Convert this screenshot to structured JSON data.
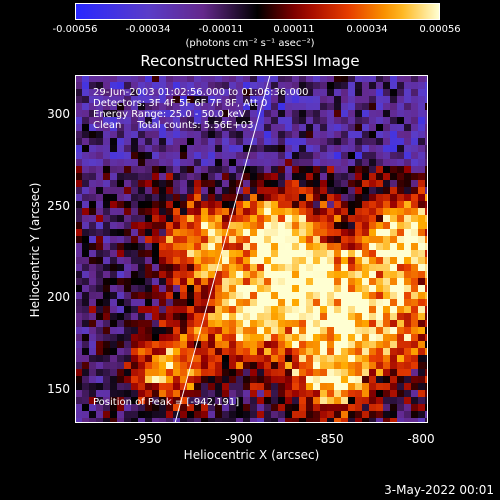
{
  "colorbar": {
    "ticks": [
      "-0.00056",
      "-0.00034",
      "-0.00011",
      "0.00011",
      "0.00034",
      "0.00056"
    ],
    "units": "(photons cm⁻² s⁻¹ asec⁻²)"
  },
  "plot": {
    "title": "Reconstructed RHESSI Image",
    "annotations": {
      "time": "29-Jun-2003 01:02:56.000 to 01:06:36.000",
      "detectors": "Detectors: 3F 4F 5F 6F 7F 8F, Att 0",
      "energy": "Energy Range: 25.0 - 50.0 keV",
      "clean": "Clean     Total counts: 5.56E+03",
      "peak": "Position of Peak = [-942,191]"
    },
    "xlabel": "Heliocentric X (arcsec)",
    "ylabel": "Heliocentric Y (arcsec)",
    "xticks": [
      "-950",
      "-900",
      "-850",
      "-800"
    ],
    "yticks": [
      "300",
      "250",
      "200",
      "150"
    ],
    "xrange": [
      -990,
      -795
    ],
    "yrange": [
      130,
      325
    ]
  },
  "footer": {
    "date": "3-May-2022 00:01"
  }
}
